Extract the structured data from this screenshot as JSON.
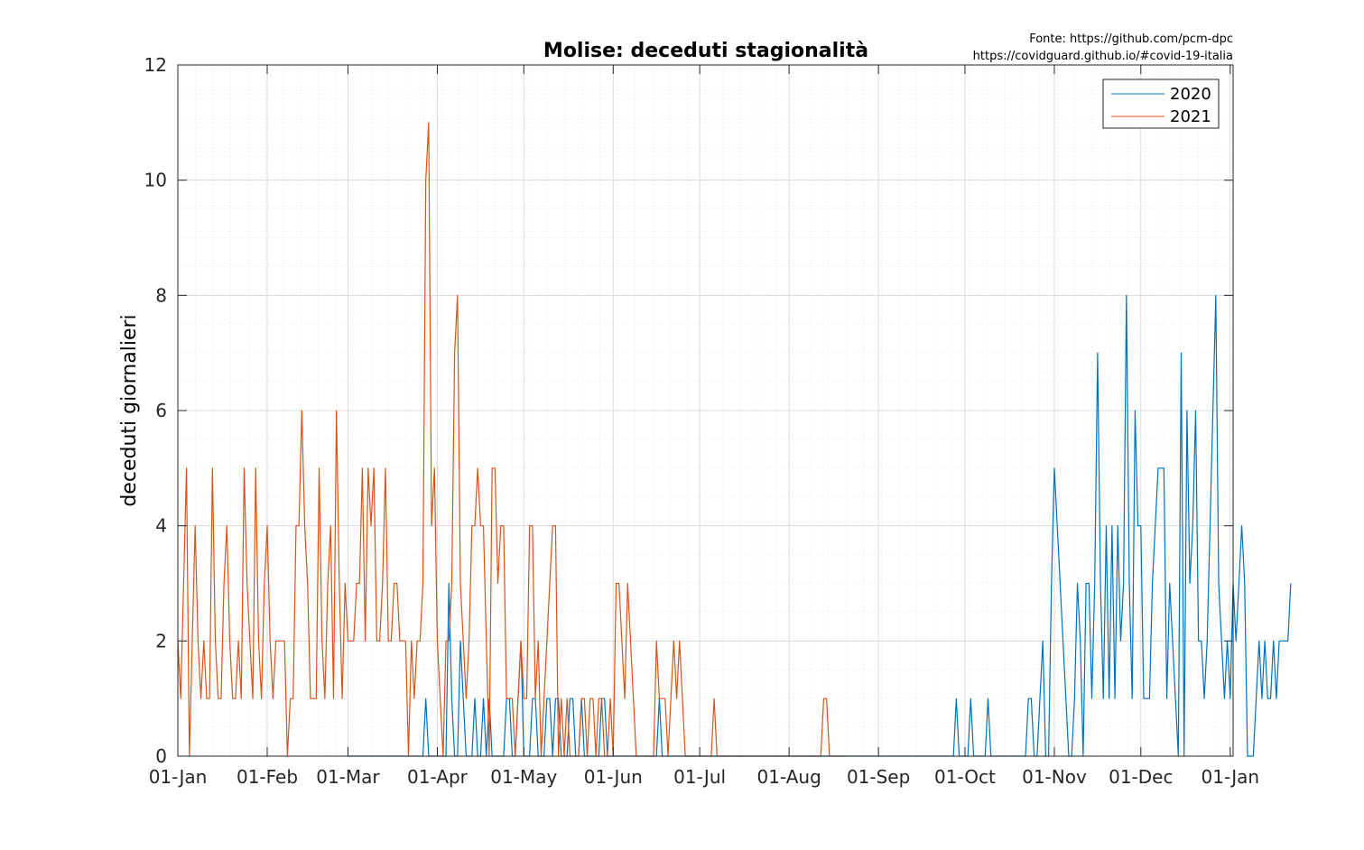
{
  "source": {
    "line1": "Fonte: https://github.com/pcm-dpc",
    "line2": "https://covidguard.github.io/#covid-19-italia"
  },
  "chart_data": {
    "type": "line",
    "title": "Molise: deceduti stagionalità",
    "xlabel": "",
    "ylabel": "deceduti giornalieri",
    "ylim": [
      0,
      12
    ],
    "xlim_days": [
      0,
      366
    ],
    "grid": true,
    "minor_grid": true,
    "legend_position": "top-right",
    "x_tick_labels": [
      "01-Jan",
      "01-Feb",
      "01-Mar",
      "01-Apr",
      "01-May",
      "01-Jun",
      "01-Jul",
      "01-Aug",
      "01-Sep",
      "01-Oct",
      "01-Nov",
      "01-Dec",
      "01-Jan"
    ],
    "y_ticks": [
      0,
      2,
      4,
      6,
      8,
      10,
      12
    ],
    "series": [
      {
        "name": "2020",
        "color": "#0072BD",
        "start_date": "01-Mar",
        "values": [
          0,
          0,
          0,
          0,
          0,
          0,
          0,
          0,
          0,
          0,
          0,
          0,
          0,
          0,
          0,
          0,
          0,
          0,
          0,
          0,
          0,
          0,
          0,
          0,
          0,
          0,
          0,
          1,
          0,
          0,
          0,
          0,
          0,
          0,
          0,
          3,
          1,
          0,
          0,
          2,
          1,
          0,
          0,
          0,
          1,
          0,
          0,
          1,
          0,
          1,
          0,
          0,
          0,
          0,
          0,
          1,
          1,
          0,
          0,
          1,
          2,
          0,
          0,
          0,
          1,
          1,
          0,
          0,
          0,
          1,
          1,
          0,
          1,
          1,
          0,
          0,
          0,
          1,
          1,
          0,
          0,
          1,
          0,
          0,
          0,
          0,
          0,
          0,
          1,
          1,
          0,
          0,
          0,
          0,
          0,
          0,
          0,
          0,
          0,
          0,
          0,
          0,
          0,
          0,
          0,
          0,
          0,
          0,
          1,
          0,
          0,
          0,
          0,
          0,
          0,
          0,
          0,
          0,
          0,
          0,
          0,
          0,
          0,
          0,
          0,
          0,
          0,
          0,
          0,
          0,
          0,
          0,
          0,
          0,
          0,
          0,
          0,
          0,
          0,
          0,
          0,
          0,
          0,
          0,
          0,
          0,
          0,
          0,
          0,
          0,
          0,
          0,
          0,
          0,
          0,
          0,
          0,
          0,
          0,
          0,
          0,
          0,
          0,
          0,
          0,
          0,
          0,
          0,
          0,
          0,
          0,
          0,
          0,
          0,
          0,
          0,
          0,
          0,
          0,
          0,
          0,
          0,
          0,
          0,
          0,
          0,
          0,
          0,
          0,
          0,
          0,
          0,
          0,
          0,
          0,
          0,
          0,
          0,
          0,
          0,
          0,
          0,
          0,
          0,
          0,
          0,
          0,
          0,
          0,
          0,
          0,
          1,
          0,
          0,
          0,
          0,
          1,
          0,
          0,
          0,
          0,
          0,
          1,
          0,
          0,
          0,
          0,
          0,
          0,
          0,
          0,
          0,
          0,
          0,
          0,
          0,
          1,
          1,
          0,
          0,
          1,
          2,
          0,
          0,
          3,
          5,
          4,
          3,
          2,
          1,
          0,
          0,
          1,
          3,
          2,
          0,
          3,
          3,
          1,
          3,
          7,
          3,
          1,
          4,
          1,
          4,
          1,
          4,
          2,
          3,
          8,
          3,
          1,
          6,
          4,
          4,
          1,
          1,
          1,
          3,
          4,
          5,
          5,
          5,
          1,
          3,
          2,
          1,
          0,
          7,
          0,
          6,
          3,
          4,
          6,
          2,
          2,
          1,
          2,
          4,
          6,
          8,
          3,
          2,
          1,
          2,
          1,
          3,
          2,
          3,
          4,
          3,
          0,
          0,
          0,
          1,
          2,
          1,
          2,
          1,
          1,
          2,
          1,
          2,
          2,
          2,
          2,
          3
        ]
      },
      {
        "name": "2021",
        "color": "#D95319",
        "start_date": "01-Jan",
        "values": [
          2,
          1,
          3,
          5,
          0,
          2,
          4,
          2,
          1,
          2,
          1,
          1,
          5,
          2,
          1,
          1,
          3,
          4,
          2,
          1,
          1,
          2,
          1,
          5,
          3,
          2,
          1,
          5,
          2,
          1,
          3,
          4,
          2,
          1,
          2,
          2,
          2,
          2,
          0,
          1,
          1,
          4,
          4,
          6,
          4,
          3,
          1,
          1,
          1,
          5,
          2,
          1,
          3,
          4,
          1,
          6,
          3,
          1,
          3,
          2,
          2,
          2,
          3,
          3,
          5,
          2,
          5,
          4,
          5,
          2,
          2,
          3,
          5,
          2,
          2,
          3,
          3,
          2,
          2,
          2,
          0,
          2,
          1,
          2,
          2,
          3,
          10,
          11,
          4,
          5,
          2,
          1,
          0,
          2,
          2,
          3,
          7,
          8,
          3,
          2,
          1,
          2,
          4,
          4,
          5,
          4,
          4,
          2,
          0,
          5,
          5,
          3,
          4,
          4,
          1,
          1,
          1,
          0,
          1,
          2,
          1,
          1,
          4,
          4,
          1,
          2,
          0,
          1,
          2,
          3,
          4,
          4,
          0,
          1,
          0,
          1,
          0,
          0,
          0,
          0,
          1,
          1,
          0,
          1,
          1,
          0,
          1,
          1,
          0,
          0,
          1,
          0,
          3,
          3,
          2,
          1,
          3,
          2,
          1,
          0,
          0,
          0,
          0,
          0,
          0,
          0,
          2,
          1,
          1,
          1,
          0,
          1,
          2,
          1,
          2,
          1,
          0,
          0,
          0,
          0,
          0,
          0,
          0,
          0,
          0,
          0,
          1,
          0,
          0,
          0,
          0,
          0,
          0,
          0,
          0,
          0,
          0,
          0,
          0,
          0,
          0,
          0,
          0,
          0,
          0,
          0,
          0,
          0,
          0,
          0,
          0,
          0,
          0,
          0,
          0,
          0,
          0,
          0,
          0,
          0,
          0,
          0,
          0,
          0,
          1,
          1,
          0,
          0,
          0,
          0,
          0,
          0
        ]
      }
    ]
  }
}
